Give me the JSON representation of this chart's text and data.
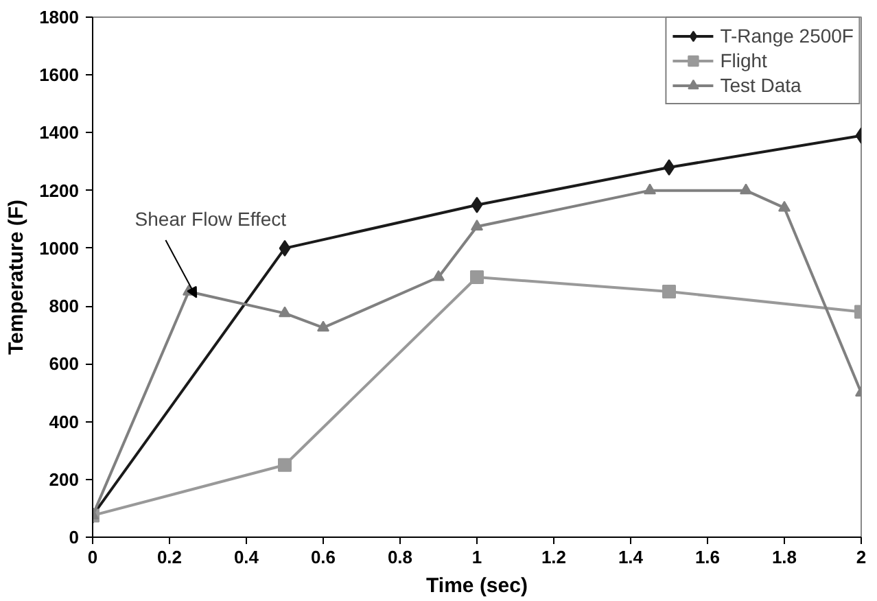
{
  "chart_data": {
    "type": "line",
    "xlabel": "Time (sec)",
    "ylabel": "Temperature (F)",
    "xlim": [
      0,
      2
    ],
    "ylim": [
      0,
      1800
    ],
    "xticks": [
      0,
      0.2,
      0.4,
      0.6,
      0.8,
      1,
      1.2,
      1.4,
      1.6,
      1.8,
      2
    ],
    "yticks": [
      0,
      200,
      400,
      600,
      800,
      1000,
      1200,
      1400,
      1600,
      1800
    ],
    "grid": false,
    "legend": "top right",
    "line_style": "solid",
    "annotations": [
      {
        "text": "Shear Flow Effect",
        "x": 0.27,
        "y": 830
      }
    ],
    "series": [
      {
        "name": "T-Range 2500F",
        "color": "#1a1a1a",
        "marker": "diamond",
        "x": [
          0,
          0.5,
          1,
          1.5,
          2
        ],
        "values": [
          75,
          1000,
          1150,
          1280,
          1390
        ]
      },
      {
        "name": "Flight",
        "color": "#999999",
        "marker": "square",
        "x": [
          0,
          0.5,
          1,
          1.5,
          2
        ],
        "values": [
          75,
          250,
          900,
          850,
          780
        ]
      },
      {
        "name": "Test Data",
        "color": "#808080",
        "marker": "triangle",
        "x": [
          0,
          0.25,
          0.5,
          0.6,
          0.9,
          1,
          1.45,
          1.7,
          1.8,
          2
        ],
        "values": [
          75,
          850,
          775,
          725,
          900,
          1075,
          1200,
          1200,
          1140,
          500
        ]
      }
    ]
  }
}
